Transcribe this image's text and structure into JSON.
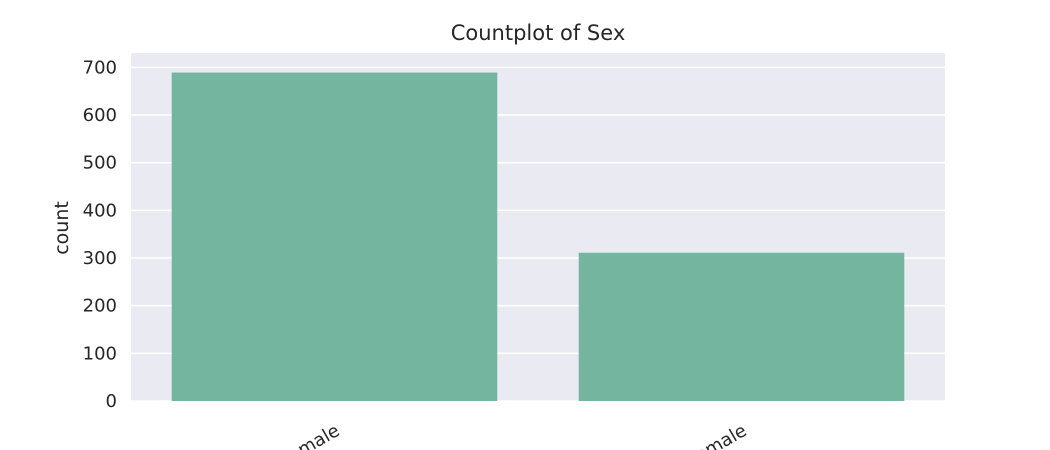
{
  "chart_data": {
    "type": "bar",
    "title": "Countplot of Sex",
    "xlabel": "",
    "ylabel": "count",
    "categories": [
      "male",
      "female"
    ],
    "values": [
      689,
      311
    ],
    "ylim": [
      0,
      730
    ],
    "yticks": [
      0,
      100,
      200,
      300,
      400,
      500,
      600,
      700
    ],
    "grid": true,
    "legend": "none",
    "xtick_rotation": -30,
    "colors": {
      "background": "#eaeaf2",
      "bar": "#74b5a0",
      "grid": "#ffffff",
      "text": "#262626"
    }
  }
}
